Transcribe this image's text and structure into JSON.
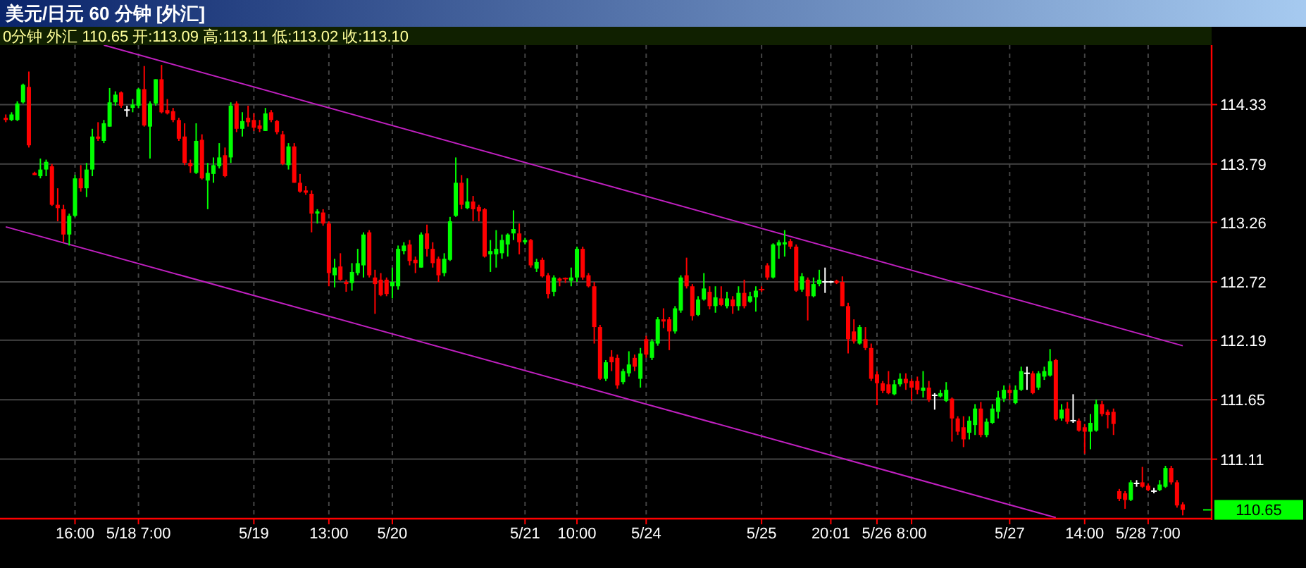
{
  "chart_data": {
    "type": "candlestick",
    "title": "美元/日元 60 分钟 [外汇]",
    "subtitle": "0分钟 外汇 110.65 开:113.09 高:113.11 低:113.02 收:113.10",
    "categories": [
      null,
      null,
      null,
      null,
      null,
      null,
      null,
      null,
      null,
      null,
      null,
      null,
      "16:00",
      null,
      null,
      null,
      null,
      null,
      null,
      null,
      null,
      null,
      null,
      "5/18 7:00",
      null,
      null,
      null,
      null,
      null,
      null,
      null,
      null,
      null,
      null,
      null,
      null,
      null,
      null,
      null,
      null,
      null,
      null,
      null,
      "5/19",
      null,
      null,
      null,
      null,
      null,
      null,
      null,
      null,
      null,
      null,
      null,
      null,
      "13:00",
      null,
      null,
      null,
      null,
      null,
      null,
      null,
      null,
      null,
      null,
      "5/20",
      null,
      null,
      null,
      null,
      null,
      null,
      null,
      null,
      null,
      null,
      null,
      null,
      null,
      null,
      null,
      null,
      null,
      null,
      null,
      null,
      null,
      null,
      "5/21",
      null,
      null,
      null,
      null,
      null,
      null,
      null,
      null,
      "10:00",
      null,
      null,
      null,
      null,
      null,
      null,
      null,
      null,
      null,
      null,
      null,
      "5/24",
      null,
      null,
      null,
      null,
      null,
      null,
      null,
      null,
      null,
      null,
      null,
      null,
      null,
      null,
      null,
      null,
      null,
      null,
      null,
      "5/25",
      null,
      null,
      null,
      null,
      null,
      null,
      null,
      null,
      null,
      null,
      null,
      "20:01",
      null,
      null,
      null,
      null,
      null,
      null,
      null,
      "5/26",
      null,
      null,
      null,
      null,
      null,
      "8:00",
      null,
      null,
      null,
      null,
      null,
      null,
      null,
      null,
      null,
      null,
      null,
      null,
      null,
      null,
      null,
      null,
      "5/27",
      null,
      null,
      null,
      null,
      null,
      null,
      null,
      null,
      null,
      null,
      null,
      null,
      "14:00",
      null,
      null,
      null,
      null,
      null,
      null,
      null,
      null,
      null,
      null,
      "5/28 7:00",
      null,
      null,
      null,
      null,
      null,
      null
    ],
    "ylim": [
      110.57,
      114.87
    ],
    "yticks": [
      111.11,
      111.65,
      112.19,
      112.72,
      113.26,
      113.79,
      114.33
    ],
    "grid": true,
    "ohlc": [
      [
        114.21,
        114.24,
        114.17,
        114.19
      ],
      [
        114.19,
        114.26,
        114.18,
        114.24
      ],
      [
        114.19,
        114.36,
        114.18,
        114.34
      ],
      [
        114.35,
        114.52,
        114.34,
        114.51
      ],
      [
        114.49,
        114.63,
        113.94,
        113.96
      ],
      [
        113.71,
        113.72,
        113.69,
        113.69
      ],
      [
        113.68,
        113.84,
        113.66,
        113.74
      ],
      [
        113.74,
        113.83,
        113.68,
        113.81
      ],
      [
        113.77,
        113.79,
        113.41,
        113.42
      ],
      [
        113.42,
        113.57,
        113.27,
        113.39
      ],
      [
        113.38,
        113.42,
        113.08,
        113.15
      ],
      [
        113.15,
        113.34,
        113.05,
        113.32
      ],
      [
        113.32,
        113.69,
        113.31,
        113.66
      ],
      [
        113.66,
        113.78,
        113.54,
        113.57
      ],
      [
        113.57,
        113.8,
        113.49,
        113.74
      ],
      [
        113.74,
        114.11,
        113.68,
        114.04
      ],
      [
        114.04,
        114.17,
        114.0,
        114.02
      ],
      [
        114.0,
        114.19,
        113.98,
        114.16
      ],
      [
        114.13,
        114.48,
        114.13,
        114.35
      ],
      [
        114.35,
        114.45,
        114.32,
        114.42
      ],
      [
        114.44,
        114.45,
        114.3,
        114.32
      ],
      [
        114.28,
        114.32,
        114.22,
        114.28
      ],
      [
        114.3,
        114.38,
        114.26,
        114.33
      ],
      [
        114.32,
        114.48,
        114.3,
        114.47
      ],
      [
        114.47,
        114.68,
        114.13,
        114.14
      ],
      [
        114.13,
        114.36,
        113.84,
        114.34
      ],
      [
        114.34,
        114.56,
        114.32,
        114.56
      ],
      [
        114.56,
        114.69,
        114.25,
        114.26
      ],
      [
        114.28,
        114.38,
        114.24,
        114.25
      ],
      [
        114.27,
        114.3,
        114.17,
        114.19
      ],
      [
        114.19,
        114.21,
        114.0,
        114.02
      ],
      [
        114.04,
        114.16,
        113.78,
        113.8
      ],
      [
        113.8,
        113.83,
        113.71,
        113.77
      ],
      [
        113.71,
        114.16,
        113.7,
        114.0
      ],
      [
        114.01,
        114.06,
        113.65,
        113.66
      ],
      [
        113.64,
        113.8,
        113.38,
        113.71
      ],
      [
        113.7,
        113.85,
        113.62,
        113.78
      ],
      [
        113.77,
        113.98,
        113.75,
        113.85
      ],
      [
        113.87,
        113.94,
        113.67,
        113.68
      ],
      [
        113.85,
        114.35,
        113.8,
        114.32
      ],
      [
        114.34,
        114.36,
        114.08,
        114.11
      ],
      [
        114.11,
        114.26,
        114.04,
        114.18
      ],
      [
        114.21,
        114.32,
        114.13,
        114.17
      ],
      [
        114.19,
        114.25,
        114.09,
        114.12
      ],
      [
        114.14,
        114.19,
        114.08,
        114.11
      ],
      [
        114.09,
        114.3,
        114.09,
        114.25
      ],
      [
        114.26,
        114.28,
        114.17,
        114.19
      ],
      [
        114.18,
        114.19,
        114.06,
        114.08
      ],
      [
        114.06,
        114.09,
        113.78,
        113.79
      ],
      [
        113.78,
        113.98,
        113.74,
        113.95
      ],
      [
        113.95,
        113.98,
        113.62,
        113.62
      ],
      [
        113.62,
        113.7,
        113.53,
        113.54
      ],
      [
        113.55,
        113.59,
        113.51,
        113.53
      ],
      [
        113.52,
        113.55,
        113.17,
        113.34
      ],
      [
        113.34,
        113.38,
        113.25,
        113.36
      ],
      [
        113.35,
        113.38,
        113.23,
        113.25
      ],
      [
        113.25,
        113.27,
        112.68,
        112.8
      ],
      [
        112.78,
        112.93,
        112.67,
        112.85
      ],
      [
        112.86,
        112.98,
        112.73,
        112.74
      ],
      [
        112.72,
        112.74,
        112.63,
        112.7
      ],
      [
        112.71,
        112.89,
        112.64,
        112.81
      ],
      [
        112.8,
        113.02,
        112.78,
        112.89
      ],
      [
        112.87,
        113.17,
        112.76,
        113.15
      ],
      [
        113.17,
        113.19,
        112.76,
        112.78
      ],
      [
        112.76,
        112.83,
        112.43,
        112.7
      ],
      [
        112.74,
        112.8,
        112.59,
        112.6
      ],
      [
        112.74,
        112.76,
        112.59,
        112.61
      ],
      [
        112.68,
        112.85,
        112.57,
        112.72
      ],
      [
        112.68,
        113.05,
        112.65,
        113.02
      ],
      [
        113.0,
        113.08,
        112.97,
        113.05
      ],
      [
        113.06,
        113.1,
        112.87,
        112.91
      ],
      [
        112.92,
        112.95,
        112.8,
        112.89
      ],
      [
        112.85,
        113.17,
        112.85,
        113.15
      ],
      [
        113.16,
        113.24,
        112.95,
        113.02
      ],
      [
        113.02,
        113.08,
        112.85,
        112.89
      ],
      [
        112.93,
        112.95,
        112.72,
        112.78
      ],
      [
        112.8,
        112.98,
        112.77,
        112.93
      ],
      [
        112.92,
        113.31,
        112.91,
        113.27
      ],
      [
        113.32,
        113.85,
        113.31,
        113.62
      ],
      [
        113.62,
        113.69,
        113.38,
        113.42
      ],
      [
        113.39,
        113.66,
        113.38,
        113.45
      ],
      [
        113.45,
        113.5,
        113.27,
        113.38
      ],
      [
        113.4,
        113.42,
        113.27,
        113.36
      ],
      [
        113.38,
        113.39,
        112.94,
        112.95
      ],
      [
        112.97,
        113.1,
        112.81,
        113.0
      ],
      [
        112.97,
        113.19,
        112.85,
        113.02
      ],
      [
        112.98,
        113.15,
        112.93,
        113.1
      ],
      [
        113.06,
        113.16,
        112.95,
        113.15
      ],
      [
        113.16,
        113.37,
        113.1,
        113.2
      ],
      [
        113.16,
        113.25,
        112.97,
        113.08
      ],
      [
        113.08,
        113.12,
        113.06,
        113.1
      ],
      [
        113.1,
        113.11,
        112.85,
        112.87
      ],
      [
        112.84,
        112.93,
        112.81,
        112.9
      ],
      [
        112.92,
        112.94,
        112.76,
        112.77
      ],
      [
        112.78,
        112.8,
        112.57,
        112.61
      ],
      [
        112.63,
        112.78,
        112.59,
        112.76
      ],
      [
        112.75,
        112.76,
        112.68,
        112.73
      ],
      [
        112.75,
        112.76,
        112.71,
        112.74
      ],
      [
        112.73,
        112.85,
        112.68,
        112.76
      ],
      [
        112.76,
        113.04,
        112.72,
        113.02
      ],
      [
        113.02,
        113.04,
        112.74,
        112.76
      ],
      [
        112.78,
        112.8,
        112.67,
        112.68
      ],
      [
        112.68,
        112.72,
        112.16,
        112.31
      ],
      [
        112.31,
        112.33,
        111.83,
        111.84
      ],
      [
        111.84,
        112.01,
        111.82,
        111.99
      ],
      [
        112.04,
        112.1,
        111.91,
        111.99
      ],
      [
        112.03,
        112.06,
        111.75,
        111.78
      ],
      [
        111.81,
        111.93,
        111.79,
        111.91
      ],
      [
        111.89,
        112.09,
        111.86,
        111.97
      ],
      [
        112.03,
        112.06,
        111.91,
        111.95
      ],
      [
        111.84,
        112.12,
        111.76,
        112.07
      ],
      [
        112.2,
        112.23,
        112.03,
        112.06
      ],
      [
        112.03,
        112.2,
        112.01,
        112.18
      ],
      [
        112.16,
        112.4,
        112.14,
        112.38
      ],
      [
        112.38,
        112.48,
        112.3,
        112.36
      ],
      [
        112.38,
        112.4,
        112.1,
        112.27
      ],
      [
        112.27,
        112.5,
        112.25,
        112.48
      ],
      [
        112.46,
        112.78,
        112.44,
        112.76
      ],
      [
        112.78,
        112.94,
        112.66,
        112.68
      ],
      [
        112.68,
        112.7,
        112.37,
        112.41
      ],
      [
        112.42,
        112.59,
        112.41,
        112.56
      ],
      [
        112.56,
        112.8,
        112.55,
        112.66
      ],
      [
        112.63,
        112.68,
        112.47,
        112.5
      ],
      [
        112.5,
        112.68,
        112.44,
        112.58
      ],
      [
        112.57,
        112.68,
        112.5,
        112.51
      ],
      [
        112.5,
        112.63,
        112.48,
        112.57
      ],
      [
        112.56,
        112.59,
        112.43,
        112.5
      ],
      [
        112.5,
        112.68,
        112.46,
        112.62
      ],
      [
        112.62,
        112.74,
        112.48,
        112.5
      ],
      [
        112.54,
        112.63,
        112.53,
        112.59
      ],
      [
        112.58,
        112.68,
        112.45,
        112.64
      ],
      [
        112.65,
        112.68,
        112.63,
        112.64
      ],
      [
        112.87,
        112.89,
        112.74,
        112.76
      ],
      [
        112.76,
        113.07,
        112.75,
        113.06
      ],
      [
        113.05,
        113.1,
        112.93,
        113.08
      ],
      [
        113.06,
        113.19,
        112.95,
        113.08
      ],
      [
        113.09,
        113.11,
        113.02,
        113.04
      ],
      [
        113.04,
        113.06,
        112.63,
        112.64
      ],
      [
        112.65,
        112.8,
        112.63,
        112.77
      ],
      [
        112.74,
        112.76,
        112.37,
        112.59
      ],
      [
        112.59,
        112.76,
        112.58,
        112.7
      ],
      [
        112.7,
        112.83,
        112.68,
        112.74
      ],
      [
        112.72,
        112.85,
        112.62,
        112.72
      ],
      [
        112.72,
        112.73,
        112.71,
        112.72
      ],
      [
        112.73,
        112.74,
        112.7,
        112.71
      ],
      [
        112.72,
        112.77,
        112.5,
        112.5
      ],
      [
        112.5,
        112.53,
        112.07,
        112.2
      ],
      [
        112.27,
        112.38,
        112.16,
        112.18
      ],
      [
        112.16,
        112.33,
        112.15,
        112.31
      ],
      [
        112.2,
        112.31,
        112.1,
        112.12
      ],
      [
        112.12,
        112.16,
        111.82,
        111.84
      ],
      [
        111.88,
        111.91,
        111.6,
        111.8
      ],
      [
        111.8,
        111.82,
        111.71,
        111.73
      ],
      [
        111.79,
        111.91,
        111.7,
        111.71
      ],
      [
        111.7,
        111.83,
        111.69,
        111.79
      ],
      [
        111.79,
        111.89,
        111.77,
        111.84
      ],
      [
        111.84,
        111.89,
        111.74,
        111.8
      ],
      [
        111.82,
        111.84,
        111.64,
        111.76
      ],
      [
        111.82,
        111.86,
        111.7,
        111.74
      ],
      [
        111.73,
        111.91,
        111.67,
        111.76
      ],
      [
        111.76,
        111.82,
        111.63,
        111.65
      ],
      [
        111.69,
        111.71,
        111.56,
        111.69
      ],
      [
        111.68,
        111.74,
        111.67,
        111.71
      ],
      [
        111.64,
        111.81,
        111.63,
        111.74
      ],
      [
        111.66,
        111.67,
        111.27,
        111.48
      ],
      [
        111.48,
        111.5,
        111.33,
        111.36
      ],
      [
        111.4,
        111.5,
        111.22,
        111.29
      ],
      [
        111.35,
        111.5,
        111.29,
        111.46
      ],
      [
        111.42,
        111.61,
        111.33,
        111.57
      ],
      [
        111.57,
        111.63,
        111.31,
        111.33
      ],
      [
        111.33,
        111.48,
        111.31,
        111.45
      ],
      [
        111.44,
        111.61,
        111.43,
        111.57
      ],
      [
        111.54,
        111.73,
        111.48,
        111.67
      ],
      [
        111.66,
        111.78,
        111.63,
        111.74
      ],
      [
        111.74,
        111.78,
        111.65,
        111.71
      ],
      [
        111.62,
        111.78,
        111.61,
        111.74
      ],
      [
        111.74,
        111.95,
        111.73,
        111.91
      ],
      [
        111.89,
        111.95,
        111.74,
        111.89
      ],
      [
        111.89,
        111.91,
        111.7,
        111.71
      ],
      [
        111.76,
        111.91,
        111.74,
        111.89
      ],
      [
        111.86,
        111.95,
        111.83,
        111.91
      ],
      [
        111.87,
        112.11,
        111.86,
        112.0
      ],
      [
        112.01,
        112.02,
        111.46,
        111.47
      ],
      [
        111.48,
        111.61,
        111.46,
        111.56
      ],
      [
        111.57,
        111.63,
        111.43,
        111.45
      ],
      [
        111.46,
        111.7,
        111.44,
        111.46
      ],
      [
        111.46,
        111.48,
        111.36,
        111.37
      ],
      [
        111.4,
        111.43,
        111.16,
        111.36
      ],
      [
        111.36,
        111.52,
        111.2,
        111.44
      ],
      [
        111.37,
        111.65,
        111.36,
        111.61
      ],
      [
        111.61,
        111.64,
        111.5,
        111.52
      ],
      [
        111.54,
        111.56,
        111.39,
        111.51
      ],
      [
        111.54,
        111.57,
        111.33,
        111.43
      ],
      [
        110.82,
        110.84,
        110.73,
        110.75
      ],
      [
        110.8,
        110.82,
        110.66,
        110.74
      ],
      [
        110.74,
        110.92,
        110.73,
        110.9
      ],
      [
        110.89,
        110.92,
        110.86,
        110.89
      ],
      [
        110.9,
        111.04,
        110.85,
        110.86
      ],
      [
        110.87,
        110.89,
        110.82,
        110.83
      ],
      [
        110.82,
        110.85,
        110.8,
        110.82
      ],
      [
        110.83,
        110.92,
        110.82,
        110.88
      ],
      [
        110.86,
        111.05,
        110.85,
        111.03
      ],
      [
        111.03,
        111.05,
        110.88,
        110.9
      ],
      [
        110.9,
        110.92,
        110.67,
        110.69
      ],
      [
        110.7,
        110.72,
        110.6,
        110.65
      ]
    ],
    "colors": [
      "#ff0000",
      "#00ff00",
      "#00ff00",
      "#00ff00",
      "#ff0000",
      "#ff0000",
      "#00ff00",
      "#00ff00",
      "#ff0000",
      "#ff0000",
      "#ff0000",
      "#00ff00",
      "#00ff00",
      "#ff0000",
      "#00ff00",
      "#00ff00",
      "#ff0000",
      "#00ff00",
      "#00ff00",
      "#00ff00",
      "#ff0000",
      "#ffffff",
      "#00ff00",
      "#00ff00",
      "#ff0000",
      "#00ff00",
      "#00ff00",
      "#ff0000",
      "#ff0000",
      "#ff0000",
      "#ff0000",
      "#ff0000",
      "#ff0000",
      "#00ff00",
      "#ff0000",
      "#00ff00",
      "#00ff00",
      "#00ff00",
      "#ff0000",
      "#00ff00",
      "#ff0000",
      "#00ff00",
      "#ff0000",
      "#ff0000",
      "#ff0000",
      "#00ff00",
      "#ff0000",
      "#ff0000",
      "#ff0000",
      "#00ff00",
      "#ff0000",
      "#ff0000",
      "#ff0000",
      "#ff0000",
      "#00ff00",
      "#ff0000",
      "#ff0000",
      "#00ff00",
      "#ff0000",
      "#ff0000",
      "#00ff00",
      "#00ff00",
      "#00ff00",
      "#ff0000",
      "#ff0000",
      "#ff0000",
      "#ff0000",
      "#00ff00",
      "#00ff00",
      "#00ff00",
      "#ff0000",
      "#ff0000",
      "#00ff00",
      "#ff0000",
      "#ff0000",
      "#ff0000",
      "#00ff00",
      "#00ff00",
      "#00ff00",
      "#ff0000",
      "#00ff00",
      "#ff0000",
      "#ff0000",
      "#ff0000",
      "#00ff00",
      "#00ff00",
      "#00ff00",
      "#00ff00",
      "#00ff00",
      "#ff0000",
      "#00ff00",
      "#ff0000",
      "#00ff00",
      "#ff0000",
      "#ff0000",
      "#00ff00",
      "#ff0000",
      "#ff0000",
      "#00ff00",
      "#00ff00",
      "#ff0000",
      "#ff0000",
      "#ff0000",
      "#ff0000",
      "#00ff00",
      "#ff0000",
      "#ff0000",
      "#00ff00",
      "#00ff00",
      "#ff0000",
      "#00ff00",
      "#ff0000",
      "#00ff00",
      "#00ff00",
      "#ff0000",
      "#ff0000",
      "#00ff00",
      "#00ff00",
      "#ff0000",
      "#ff0000",
      "#00ff00",
      "#00ff00",
      "#ff0000",
      "#00ff00",
      "#ff0000",
      "#00ff00",
      "#ff0000",
      "#00ff00",
      "#ff0000",
      "#00ff00",
      "#00ff00",
      "#ff0000",
      "#ff0000",
      "#00ff00",
      "#00ff00",
      "#00ff00",
      "#ff0000",
      "#ff0000",
      "#00ff00",
      "#ff0000",
      "#00ff00",
      "#00ff00",
      "#ffffff",
      "#ffffff",
      "#ff0000",
      "#ff0000",
      "#ff0000",
      "#ff0000",
      "#00ff00",
      "#ff0000",
      "#ff0000",
      "#ff0000",
      "#ff0000",
      "#ff0000",
      "#00ff00",
      "#00ff00",
      "#ff0000",
      "#ff0000",
      "#ff0000",
      "#00ff00",
      "#ff0000",
      "#ffffff",
      "#00ff00",
      "#00ff00",
      "#ff0000",
      "#ff0000",
      "#ff0000",
      "#00ff00",
      "#00ff00",
      "#ff0000",
      "#00ff00",
      "#00ff00",
      "#00ff00",
      "#00ff00",
      "#ff0000",
      "#00ff00",
      "#00ff00",
      "#ffffff",
      "#ff0000",
      "#00ff00",
      "#00ff00",
      "#00ff00",
      "#ff0000",
      "#00ff00",
      "#ff0000",
      "#ffffff",
      "#ff0000",
      "#ff0000",
      "#00ff00",
      "#00ff00",
      "#ff0000",
      "#ff0000",
      "#ff0000",
      "#ff0000",
      "#ff0000",
      "#00ff00",
      "#ffffff",
      "#ff0000",
      "#ff0000",
      "#ffffff",
      "#00ff00",
      "#00ff00",
      "#ff0000",
      "#ff0000",
      "#ff0000"
    ],
    "series": [
      {
        "type": "line",
        "color": "#c020c0",
        "values": [
          null,
          null,
          null,
          null,
          null,
          null,
          null,
          null,
          null,
          null,
          null,
          null,
          null,
          null,
          null,
          null,
          null,
          114.87,
          null,
          null,
          null,
          null,
          null,
          null,
          null,
          null,
          null,
          null,
          null,
          null,
          null,
          null,
          null,
          null,
          null,
          null,
          null,
          null,
          null,
          null,
          null,
          null,
          null,
          null,
          null,
          null,
          null,
          null,
          null,
          null,
          null,
          null,
          null,
          null,
          null,
          null,
          null,
          null,
          null,
          null,
          null,
          null,
          null,
          null,
          null,
          null,
          null,
          null,
          null,
          null,
          null,
          null,
          null,
          null,
          null,
          null,
          null,
          null,
          null,
          null,
          null,
          null,
          null,
          null,
          null,
          null,
          null,
          null,
          null,
          null,
          null,
          null,
          null,
          null,
          null,
          null,
          null,
          null,
          null,
          null,
          null,
          null,
          null,
          null,
          null,
          null,
          null,
          null,
          null,
          null,
          null,
          null,
          null,
          null,
          null,
          null,
          null,
          null,
          null,
          null,
          null,
          null,
          null,
          null,
          null,
          null,
          null,
          null,
          null,
          null,
          null,
          null,
          null,
          null,
          null,
          null,
          null,
          null,
          null,
          null,
          null,
          null,
          null,
          null,
          null,
          null,
          null,
          null,
          null,
          null,
          null,
          null,
          null,
          null,
          null,
          null,
          null,
          null,
          null,
          null,
          null,
          null,
          null,
          null,
          null,
          null,
          null,
          null,
          null,
          null,
          null,
          null,
          null,
          null,
          null,
          null,
          null,
          null,
          null,
          null,
          null,
          null,
          null,
          null,
          null,
          null,
          null,
          null,
          null,
          null,
          null,
          null,
          null,
          null,
          null,
          null,
          null,
          null,
          null,
          null,
          null,
          null,
          null,
          null,
          112.14
        ]
      },
      {
        "type": "line",
        "color": "#c020c0",
        "values": [
          113.22,
          null,
          null,
          null,
          null,
          null,
          null,
          null,
          null,
          null,
          null,
          null,
          null,
          null,
          null,
          null,
          null,
          null,
          null,
          null,
          null,
          null,
          null,
          null,
          null,
          null,
          null,
          null,
          null,
          null,
          null,
          null,
          null,
          null,
          null,
          null,
          null,
          null,
          null,
          null,
          null,
          null,
          null,
          null,
          null,
          null,
          null,
          null,
          null,
          null,
          null,
          null,
          null,
          null,
          null,
          null,
          null,
          null,
          null,
          null,
          null,
          null,
          null,
          null,
          null,
          null,
          null,
          null,
          null,
          null,
          null,
          null,
          null,
          null,
          null,
          null,
          null,
          null,
          null,
          null,
          null,
          null,
          null,
          null,
          null,
          null,
          null,
          null,
          null,
          null,
          null,
          null,
          null,
          null,
          null,
          null,
          null,
          null,
          null,
          null,
          null,
          null,
          null,
          null,
          null,
          null,
          null,
          null,
          null,
          null,
          null,
          null,
          null,
          null,
          null,
          null,
          null,
          null,
          null,
          null,
          null,
          null,
          null,
          null,
          null,
          null,
          null,
          null,
          null,
          null,
          null,
          null,
          null,
          null,
          null,
          null,
          null,
          null,
          null,
          null,
          null,
          null,
          null,
          null,
          null,
          null,
          null,
          null,
          null,
          null,
          null,
          null,
          null,
          null,
          null,
          null,
          null,
          null,
          null,
          null,
          null,
          null,
          null,
          null,
          null,
          null,
          null,
          null,
          null,
          null,
          null,
          null,
          null,
          null,
          null,
          null,
          null,
          null,
          null,
          null,
          null,
          null,
          110.58,
          null,
          null,
          null,
          null,
          null,
          null,
          null,
          null,
          null,
          null,
          null,
          null,
          null,
          null,
          null,
          null,
          null,
          null,
          null,
          null,
          null,
          null
        ]
      }
    ],
    "annotations": [
      "110.65"
    ]
  }
}
